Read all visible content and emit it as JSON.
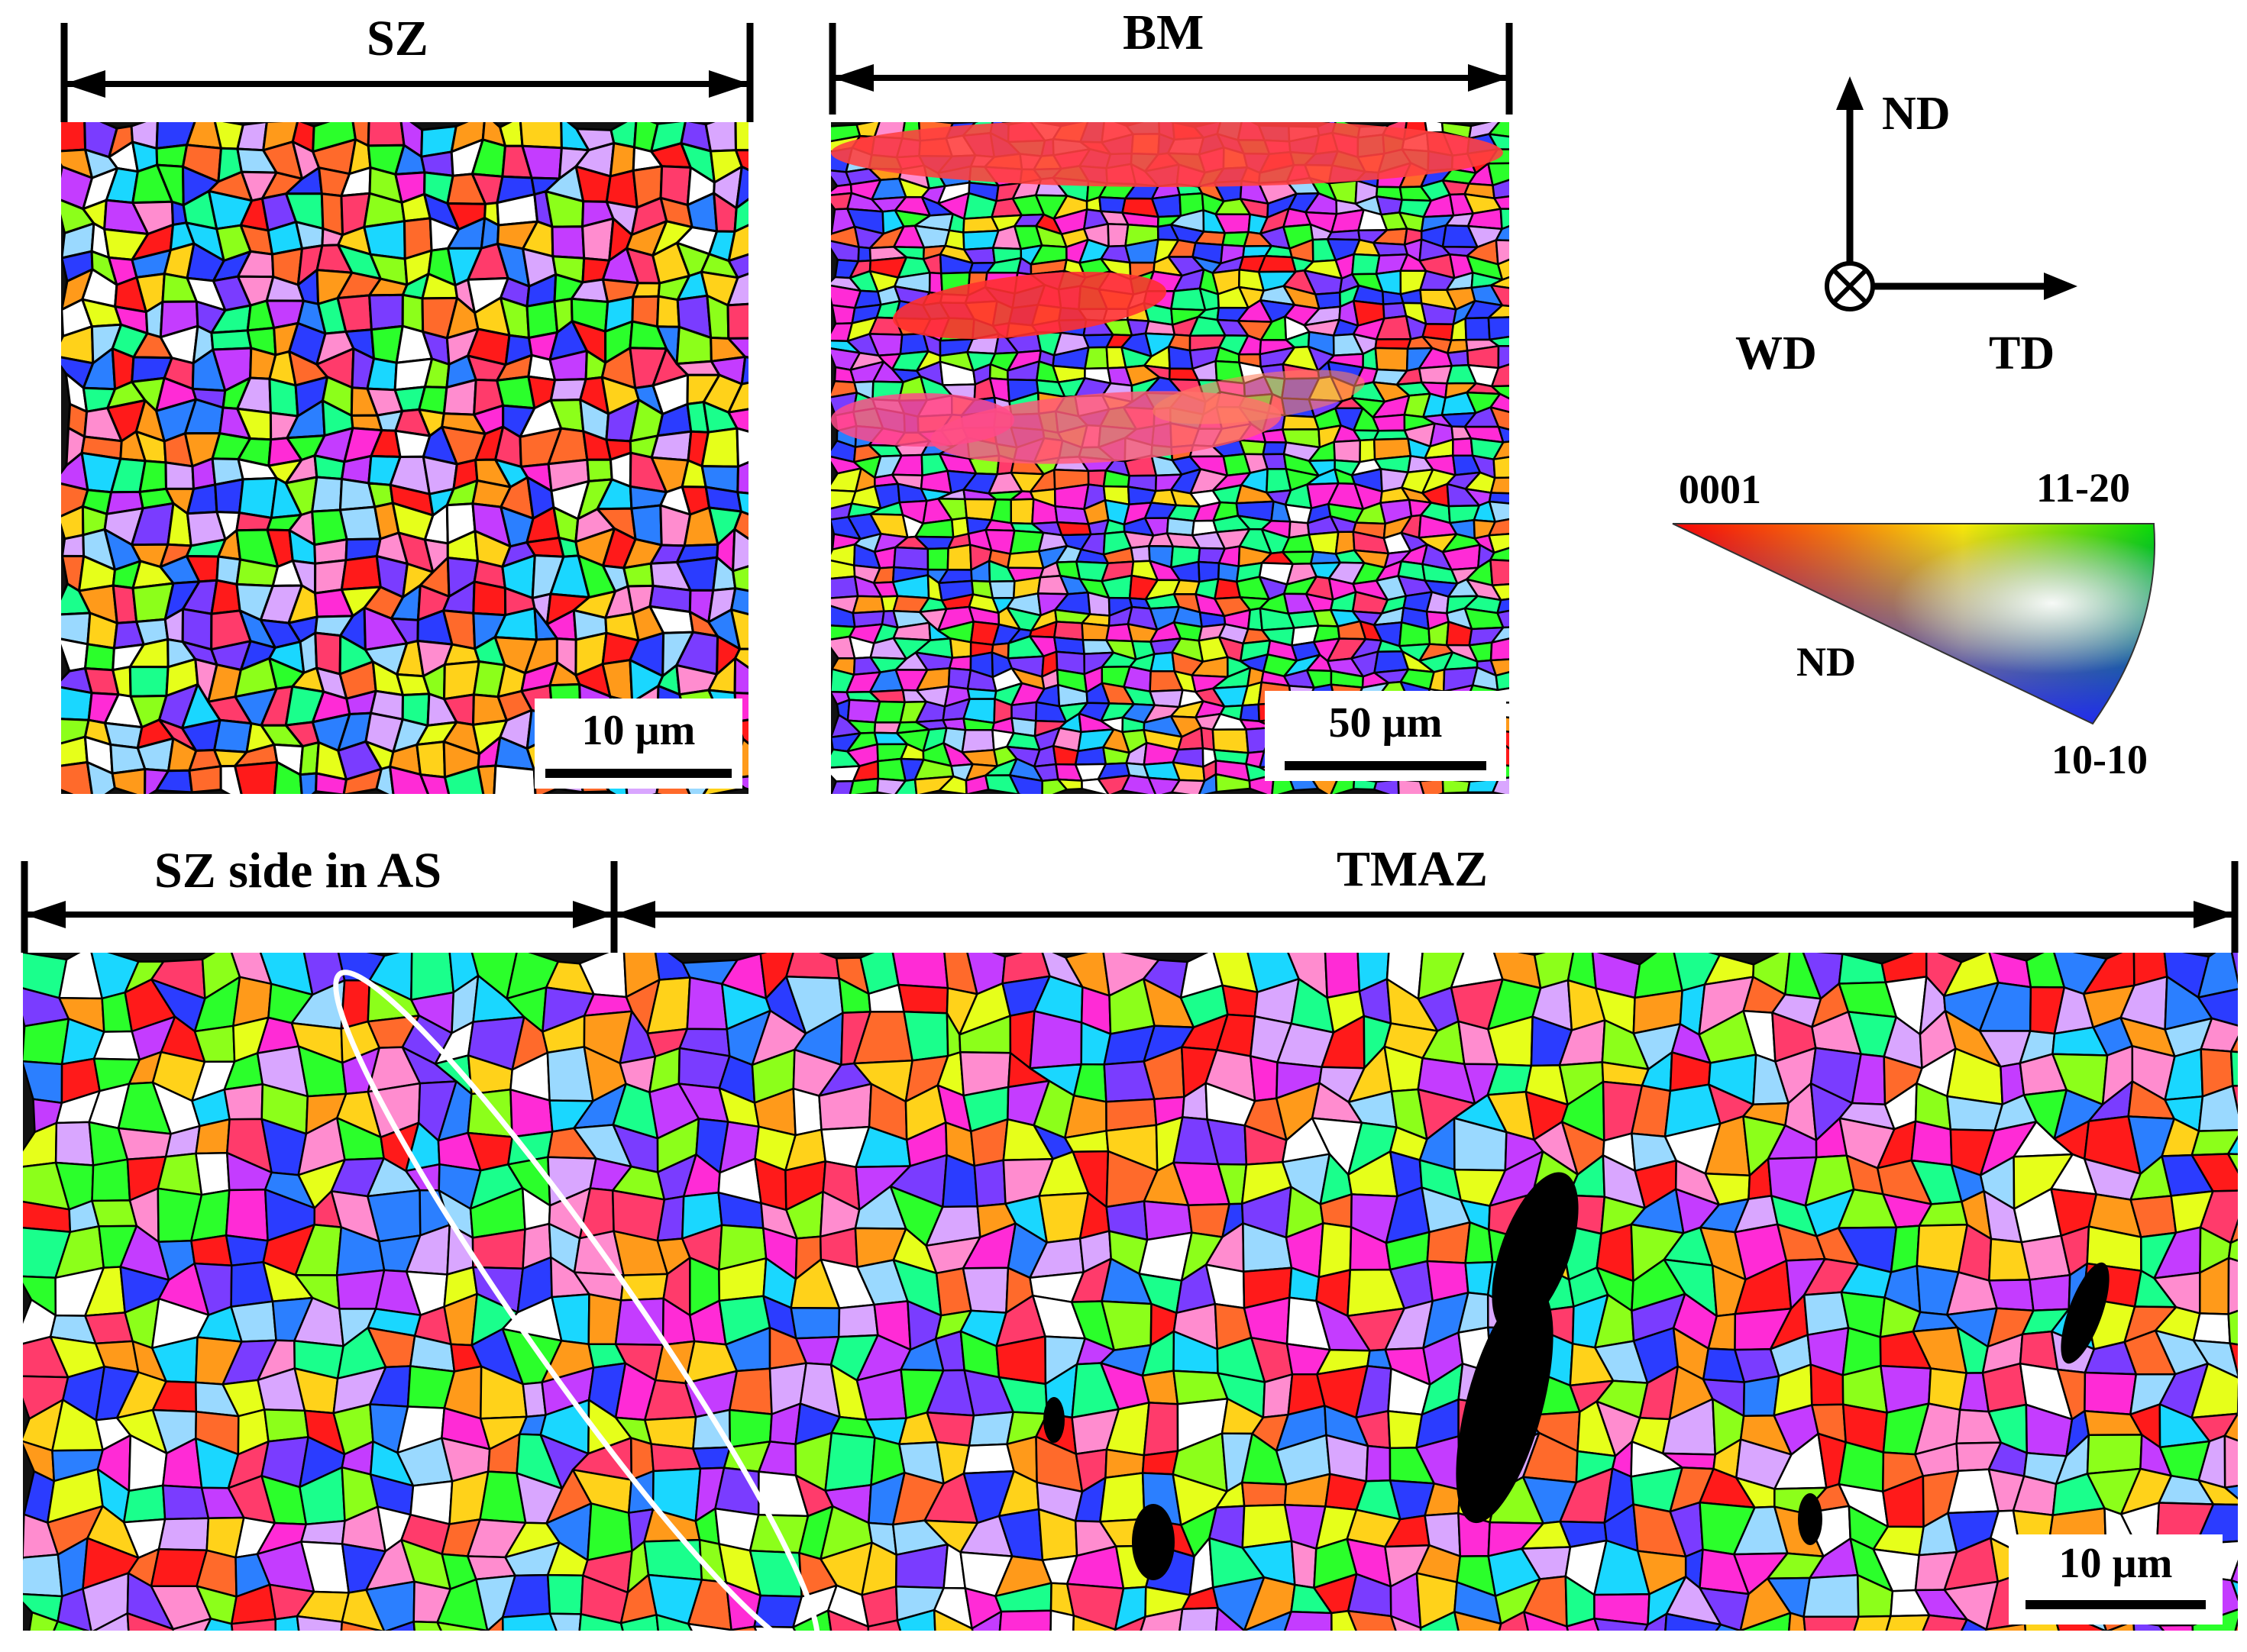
{
  "panels": {
    "sz": {
      "label": "SZ",
      "scale_bar": "10 µm"
    },
    "bm": {
      "label": "BM",
      "scale_bar": "50 µm"
    },
    "bottom": {
      "left_label": "SZ side in AS",
      "right_label": "TMAZ",
      "scale_bar": "10 µm"
    }
  },
  "axes": {
    "up": "ND",
    "right": "TD",
    "into_page": "WD"
  },
  "ipf_key": {
    "corner_top_left": "0001",
    "corner_top_right": "11-20",
    "corner_bottom": "10-10",
    "direction": "ND"
  },
  "colors": {
    "grain_boundary": "#000000",
    "ellipse": "#ffffff",
    "grain_palette": [
      "#ff1a1a",
      "#ff3b6b",
      "#ff2bd6",
      "#c43cff",
      "#7a3cff",
      "#2b3cff",
      "#2b7fff",
      "#1ad7ff",
      "#1aff8c",
      "#2bff2b",
      "#8cff1a",
      "#e6ff1a",
      "#ffd21a",
      "#ff9a1a",
      "#ff6a2b",
      "#ff8ccf",
      "#d9a6ff",
      "#9ad9ff",
      "#ffffff"
    ]
  }
}
